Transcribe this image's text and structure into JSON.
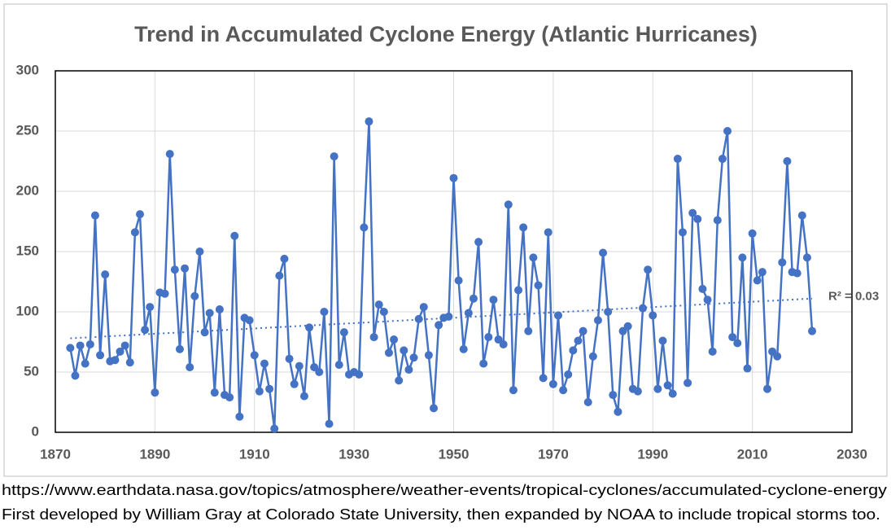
{
  "chart_data": {
    "type": "line",
    "title": "Trend in Accumulated Cyclone Energy (Atlantic Hurricanes)",
    "x": [
      1873,
      1874,
      1875,
      1876,
      1877,
      1878,
      1879,
      1880,
      1881,
      1882,
      1883,
      1884,
      1885,
      1886,
      1887,
      1888,
      1889,
      1890,
      1891,
      1892,
      1893,
      1894,
      1895,
      1896,
      1897,
      1898,
      1899,
      1900,
      1901,
      1902,
      1903,
      1904,
      1905,
      1906,
      1907,
      1908,
      1909,
      1910,
      1911,
      1912,
      1913,
      1914,
      1915,
      1916,
      1917,
      1918,
      1919,
      1920,
      1921,
      1922,
      1923,
      1924,
      1925,
      1926,
      1927,
      1928,
      1929,
      1930,
      1931,
      1932,
      1933,
      1934,
      1935,
      1936,
      1937,
      1938,
      1939,
      1940,
      1941,
      1942,
      1943,
      1944,
      1945,
      1946,
      1947,
      1948,
      1949,
      1950,
      1951,
      1952,
      1953,
      1954,
      1955,
      1956,
      1957,
      1958,
      1959,
      1960,
      1961,
      1962,
      1963,
      1964,
      1965,
      1966,
      1967,
      1968,
      1969,
      1970,
      1971,
      1972,
      1973,
      1974,
      1975,
      1976,
      1977,
      1978,
      1979,
      1980,
      1981,
      1982,
      1983,
      1984,
      1985,
      1986,
      1987,
      1988,
      1989,
      1990,
      1991,
      1992,
      1993,
      1994,
      1995,
      1996,
      1997,
      1998,
      1999,
      2000,
      2001,
      2002,
      2003,
      2004,
      2005,
      2006,
      2007,
      2008,
      2009,
      2010,
      2011,
      2012,
      2013,
      2014,
      2015,
      2016,
      2017,
      2018,
      2019,
      2020,
      2021,
      2022
    ],
    "series": [
      {
        "color": "#4472c4",
        "values": [
          70,
          47,
          72,
          57,
          73,
          180,
          64,
          131,
          59,
          60,
          67,
          72,
          58,
          166,
          181,
          85,
          104,
          33,
          116,
          115,
          231,
          135,
          69,
          136,
          54,
          113,
          150,
          83,
          99,
          33,
          102,
          31,
          29,
          163,
          13,
          95,
          93,
          64,
          34,
          57,
          36,
          3,
          130,
          144,
          61,
          40,
          55,
          30,
          87,
          54,
          50,
          100,
          7,
          229,
          56,
          83,
          48,
          50,
          48,
          170,
          258,
          79,
          106,
          100,
          66,
          77,
          43,
          68,
          52,
          62,
          94,
          104,
          64,
          20,
          89,
          95,
          96,
          211,
          126,
          69,
          99,
          111,
          158,
          57,
          79,
          110,
          77,
          73,
          189,
          35,
          118,
          170,
          84,
          145,
          122,
          45,
          166,
          40,
          97,
          35,
          48,
          68,
          76,
          84,
          25,
          63,
          93,
          149,
          100,
          31,
          17,
          84,
          88,
          36,
          34,
          103,
          135,
          97,
          36,
          76,
          39,
          32,
          227,
          166,
          41,
          182,
          177,
          119,
          110,
          67,
          176,
          227,
          250,
          79,
          74,
          145,
          53,
          165,
          126,
          133,
          36,
          67,
          63,
          141,
          225,
          133,
          132,
          180,
          145,
          84
        ]
      }
    ],
    "trendline": {
      "x": [
        1873,
        2022
      ],
      "values": [
        78,
        111
      ],
      "label": "R² = 0.03"
    },
    "xlim": [
      1870,
      2030
    ],
    "xticks": [
      1870,
      1890,
      1910,
      1930,
      1950,
      1970,
      1990,
      2010,
      2030
    ],
    "ylim": [
      0,
      300
    ],
    "yticks": [
      0,
      50,
      100,
      150,
      200,
      250,
      300
    ],
    "grid": true,
    "footnotes": [
      "https://www.earthdata.nasa.gov/topics/atmosphere/weather-events/tropical-cyclones/accumulated-cyclone-energy",
      "First developed by William Gray at Colorado State University, then expanded by NOAA to include tropical storms too."
    ]
  }
}
